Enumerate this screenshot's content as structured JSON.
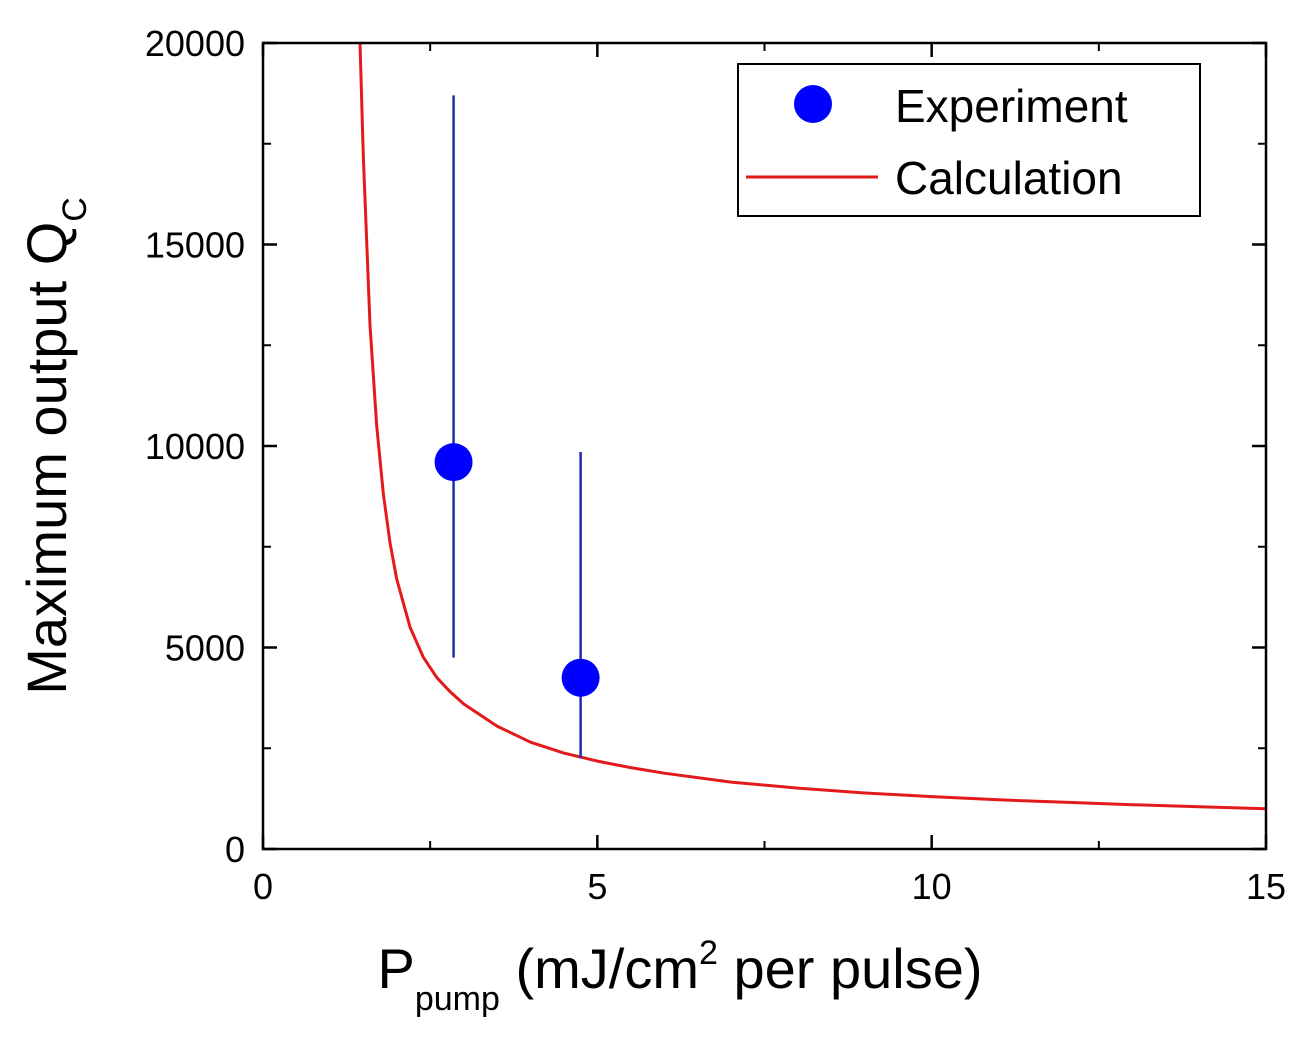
{
  "chart_data": {
    "type": "scatter",
    "xlabel": {
      "main": "P",
      "subscript": "pump",
      "unit_before_sup": " (mJ/cm",
      "superscript": "2",
      "unit_after_sup": " per pulse)"
    },
    "ylabel": {
      "main": "Maximum output Q",
      "subscript": "C"
    },
    "xlim": [
      0,
      15
    ],
    "ylim": [
      0,
      20000
    ],
    "x_ticks": [
      0,
      5,
      10,
      15
    ],
    "x_tick_labels": [
      "0",
      "5",
      "10",
      "15"
    ],
    "y_ticks": [
      0,
      5000,
      10000,
      15000,
      20000
    ],
    "y_tick_labels": [
      "0",
      "5000",
      "10000",
      "15000",
      "20000"
    ],
    "grid": false,
    "legend_position": "top-right",
    "series": [
      {
        "name": "Experiment",
        "kind": "points-with-error-bars",
        "color": "#0000ff",
        "error_bar_color": "#1f2fb0",
        "points": [
          {
            "x": 2.85,
            "y": 9600,
            "y_low": 4750,
            "y_high": 18700
          },
          {
            "x": 4.75,
            "y": 4250,
            "y_low": 2250,
            "y_high": 9850
          }
        ]
      },
      {
        "name": "Calculation",
        "kind": "line",
        "color": "#e31a1c",
        "x": [
          1.45,
          1.5,
          1.6,
          1.7,
          1.8,
          1.9,
          2.0,
          2.2,
          2.4,
          2.6,
          2.8,
          3.0,
          3.5,
          4.0,
          4.5,
          5.0,
          5.5,
          6.0,
          7.0,
          8.0,
          9.0,
          10.0,
          11.0,
          12.0,
          13.0,
          14.0,
          15.0
        ],
        "y": [
          20000,
          17200,
          13000,
          10500,
          8800,
          7600,
          6700,
          5500,
          4750,
          4250,
          3900,
          3600,
          3050,
          2650,
          2380,
          2180,
          2020,
          1880,
          1660,
          1510,
          1390,
          1300,
          1220,
          1160,
          1100,
          1050,
          1000
        ]
      }
    ]
  }
}
